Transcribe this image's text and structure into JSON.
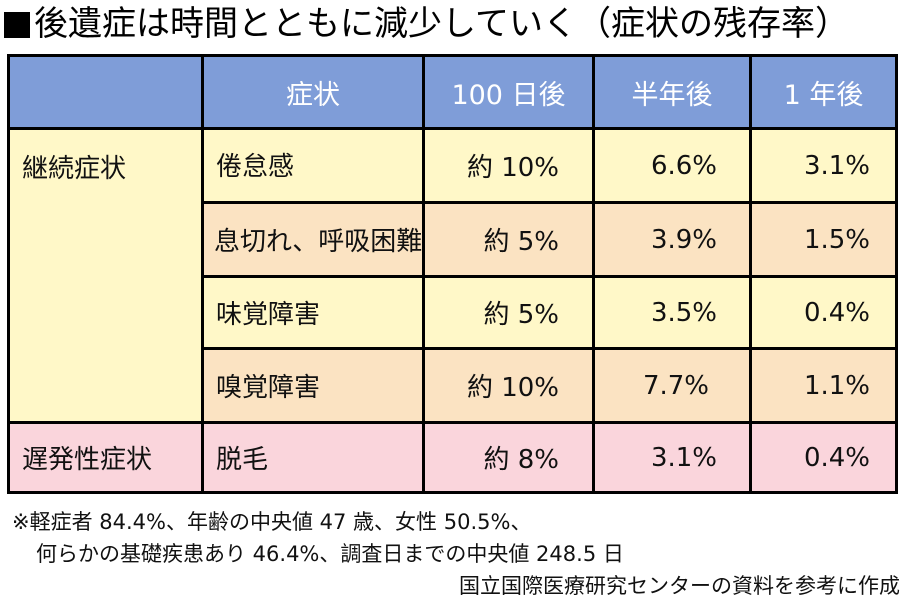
{
  "title": {
    "marker": "■",
    "text": "後遺症は時間とともに減少していく（症状の残存率）"
  },
  "table": {
    "headers": [
      "",
      "症状",
      "100 日後",
      "半年後",
      "1 年後"
    ],
    "groups": [
      {
        "label": "継続症状",
        "rows": [
          {
            "symptom": "倦怠感",
            "d100": "約 10%",
            "half": "6.6%",
            "year": "3.1%"
          },
          {
            "symptom": "息切れ、呼吸困難",
            "d100": "約 5%",
            "half": "3.9%",
            "year": "1.5%"
          },
          {
            "symptom": "味覚障害",
            "d100": "約 5%",
            "half": "3.5%",
            "year": "0.4%"
          },
          {
            "symptom": "嗅覚障害",
            "d100": "約 10%",
            "half": "7.7%",
            "year": "1.1%"
          }
        ]
      },
      {
        "label": "遅発性症状",
        "rows": [
          {
            "symptom": "脱毛",
            "d100": "約 8%",
            "half": "3.1%",
            "year": "0.4%"
          }
        ]
      }
    ],
    "colors": {
      "header": "#7f9dd8",
      "yellow": "#fff8c8",
      "peach": "#fbe3c2",
      "pink": "#fad5dc",
      "border": "#000000"
    }
  },
  "footnote": {
    "line1": "※軽症者 84.4%、年齢の中央値 47 歳、女性 50.5%、",
    "line2": "何らかの基礎疾患あり 46.4%、調査日までの中央値 248.5 日"
  },
  "source": "国立国際医療研究センターの資料を参考に作成"
}
